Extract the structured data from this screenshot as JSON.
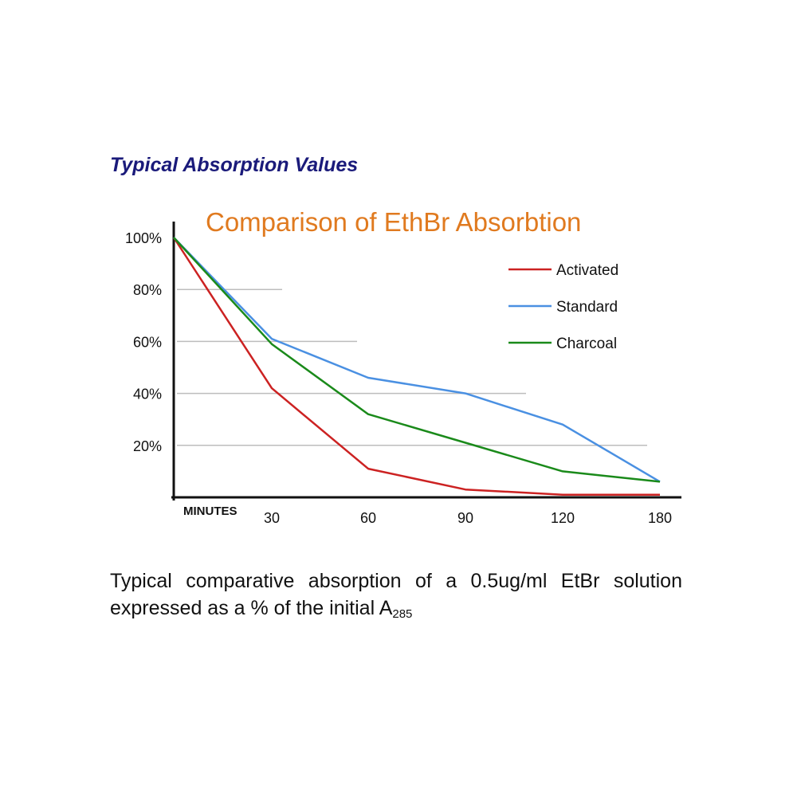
{
  "heading": "Typical Absorption Values",
  "caption": {
    "text": "Typical comparative absorption of a 0.5ug/ml EtBr solution expressed as a % of the initial A",
    "subscript": "285"
  },
  "chart_data": {
    "type": "line",
    "title": "Comparison of EthBr Absorbtion",
    "xlabel": "MINUTES",
    "ylabel": "",
    "categories": [
      "0",
      "30",
      "60",
      "90",
      "120",
      "180"
    ],
    "x_tick_labels": [
      "30",
      "60",
      "90",
      "120",
      "180"
    ],
    "y_tick_labels": [
      "20%",
      "40%",
      "60%",
      "80%",
      "100%"
    ],
    "y_ticks": [
      20,
      40,
      60,
      80,
      100
    ],
    "ylim": [
      0,
      100
    ],
    "grid": true,
    "legend_position": "top-right",
    "series": [
      {
        "name": "Activated",
        "color": "#cc2222",
        "values": [
          100,
          42,
          11,
          3,
          1,
          1
        ]
      },
      {
        "name": "Standard",
        "color": "#4a90e2",
        "values": [
          100,
          61,
          46,
          40,
          28,
          6
        ]
      },
      {
        "name": "Charcoal",
        "color": "#1a8a1a",
        "values": [
          100,
          59,
          32,
          21,
          10,
          6
        ]
      }
    ]
  }
}
